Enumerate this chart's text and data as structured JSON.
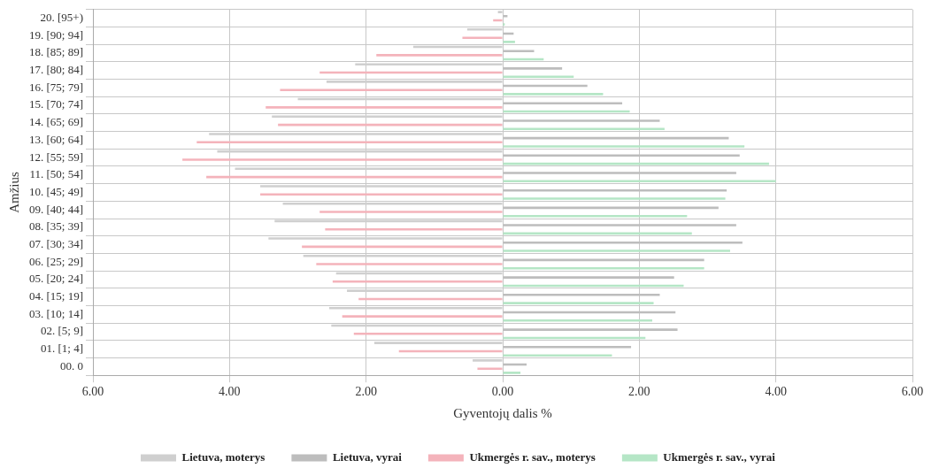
{
  "chart_data": {
    "type": "bar",
    "orientation": "horizontal",
    "xlabel": "Gyventojų dalis %",
    "ylabel": "Amžius",
    "categories": [
      "20. [95+)",
      "19. [90; 94]",
      "18. [85; 89]",
      "17. [80; 84]",
      "16. [75; 79]",
      "15. [70; 74]",
      "14. [65; 69]",
      "13. [60; 64]",
      "12. [55; 59]",
      "11. [50; 54]",
      "10. [45; 49]",
      "09. [40; 44]",
      "08. [35; 39]",
      "07. [30; 34]",
      "06. [25; 29]",
      "05. [20; 24]",
      "04. [15; 19]",
      "03. [10; 14]",
      "02. [5; 9]",
      "01. [1; 4]",
      "00. 0"
    ],
    "series": [
      {
        "name": "Lietuva, moterys",
        "color": "#cfcfcf",
        "values": [
          -0.07,
          -0.52,
          -1.31,
          -2.16,
          -2.58,
          -3.0,
          -3.38,
          -4.3,
          -4.18,
          -3.92,
          -3.55,
          -3.22,
          -3.34,
          -3.43,
          -2.92,
          -2.44,
          -2.28,
          -2.54,
          -2.51,
          -1.88,
          -0.44
        ]
      },
      {
        "name": "Lietuva, vyrai",
        "color": "#bdbdbd",
        "values": [
          0.07,
          0.16,
          0.46,
          0.87,
          1.24,
          1.75,
          2.3,
          3.31,
          3.47,
          3.42,
          3.28,
          3.16,
          3.42,
          3.51,
          2.95,
          2.51,
          2.3,
          2.53,
          2.56,
          1.88,
          0.35
        ]
      },
      {
        "name": "Ukmergės r. sav., moterys",
        "color": "#f4b3bb",
        "values": [
          -0.14,
          -0.59,
          -1.85,
          -2.68,
          -3.26,
          -3.47,
          -3.29,
          -4.48,
          -4.69,
          -4.34,
          -3.55,
          -2.68,
          -2.6,
          -2.94,
          -2.73,
          -2.49,
          -2.11,
          -2.35,
          -2.18,
          -1.52,
          -0.37
        ]
      },
      {
        "name": "Ukmergės r. sav., vyrai",
        "color": "#b5e6c6",
        "values": [
          0.03,
          0.18,
          0.6,
          1.04,
          1.47,
          1.86,
          2.37,
          3.54,
          3.9,
          4.0,
          3.26,
          2.7,
          2.77,
          3.33,
          2.95,
          2.65,
          2.21,
          2.19,
          2.09,
          1.6,
          0.26
        ]
      }
    ],
    "xlim": [
      -6,
      6
    ],
    "xticks": [
      {
        "value": -6,
        "label": "6.00"
      },
      {
        "value": -4,
        "label": "4.00"
      },
      {
        "value": -2,
        "label": "2.00"
      },
      {
        "value": 0,
        "label": "0.00"
      },
      {
        "value": 2,
        "label": "2.00"
      },
      {
        "value": 4,
        "label": "4.00"
      },
      {
        "value": 6,
        "label": "6.00"
      }
    ],
    "grid": true,
    "legend": "bottom"
  }
}
